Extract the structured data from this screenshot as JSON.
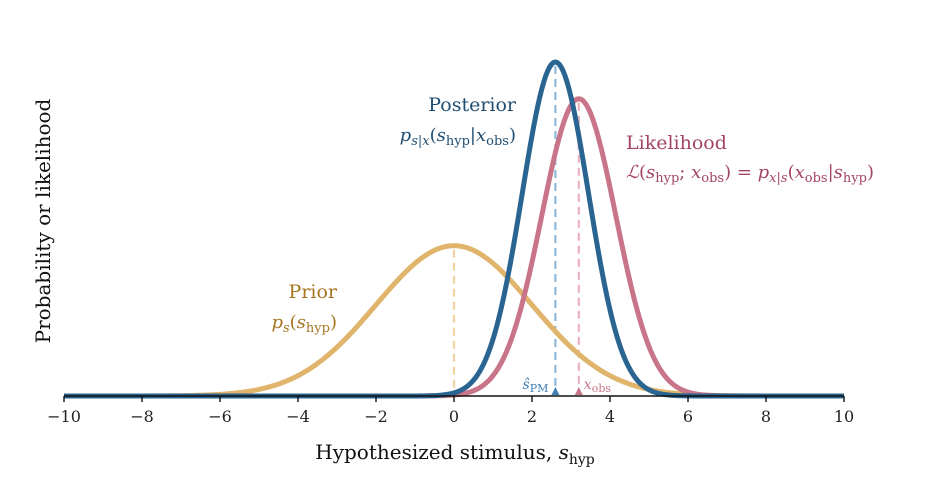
{
  "chart_data": {
    "type": "line",
    "xlabel": "Hypothesized stimulus, ",
    "xlabel_sym": "s",
    "xlabel_sub": "hyp",
    "ylabel": "Probability or likelihood",
    "xlim": [
      -10,
      10
    ],
    "xticks": [
      -10,
      -8,
      -6,
      -4,
      -2,
      0,
      2,
      4,
      6,
      8,
      10
    ],
    "xtick_labels": [
      "−10",
      "−8",
      "−6",
      "−4",
      "−2",
      "0",
      "2",
      "4",
      "6",
      "8",
      "10"
    ],
    "grid": false,
    "series": [
      {
        "name": "Prior",
        "formula": "p_s(s_hyp)",
        "color": "#e0b46a",
        "mean": 0.0,
        "sd": 2.0,
        "peak": 0.45
      },
      {
        "name": "Likelihood",
        "formula": "L(s_hyp; x_obs) = p_x|s(x_obs|s_hyp)",
        "color": "#c97589",
        "mean": 3.2,
        "sd": 0.95,
        "peak": 0.89
      },
      {
        "name": "Posterior",
        "formula": "p_s|x(s_hyp|x_obs)",
        "color": "#2a6592",
        "mean": 2.6,
        "sd": 0.85,
        "peak": 1.0
      }
    ],
    "markers": [
      {
        "label": "ŝ_PM",
        "x": 2.6,
        "color": "#3f7fb3",
        "line_color": "#8fb9db",
        "curve": "Posterior"
      },
      {
        "label": "x_obs",
        "x": 3.2,
        "color": "#c97589",
        "line_color": "#eab0bd",
        "curve": "Likelihood"
      },
      {
        "label": "",
        "x": 0.0,
        "color": "#e0b46a",
        "line_color": "#f4d3a2",
        "curve": "Prior"
      }
    ]
  }
}
